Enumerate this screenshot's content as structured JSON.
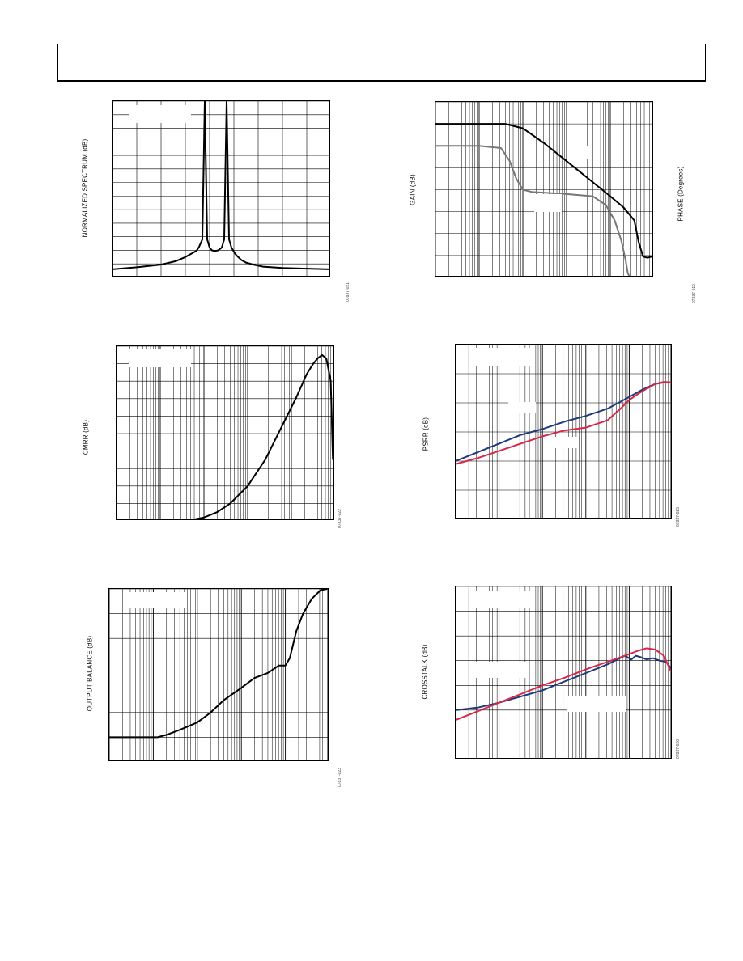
{
  "figures": [
    {
      "ylabel": "NORMALIZED SPECTRUM (dB)",
      "fig_id": "07837-021"
    },
    {
      "ylabel": "GAIN (dB)",
      "ylabel_right": "PHASE (Degrees)",
      "fig_id": "07837-010"
    },
    {
      "ylabel": "CMRR (dB)",
      "fig_id": "07837-022"
    },
    {
      "ylabel": "PSRR (dB)",
      "fig_id": "07837-025"
    },
    {
      "ylabel": "OUTPUT BALANCE (dB)",
      "fig_id": "07837-023"
    },
    {
      "ylabel": "CROSSTALK (dB)",
      "fig_id": "07837-026"
    }
  ],
  "colors": {
    "blue": "#1f3a7a",
    "red": "#d6284a",
    "black": "#000000",
    "gray": "#777777"
  },
  "chart_data": [
    {
      "type": "line",
      "xscale": "linear",
      "xlim": [
        0,
        9
      ],
      "ylim": [
        0,
        13
      ],
      "series": [
        {
          "values_x": [
            0,
            1,
            2,
            2.6,
            3,
            3.45,
            3.55,
            3.7,
            3.8,
            3.9,
            4.0,
            4.1,
            4.2,
            4.35,
            4.5,
            4.6,
            4.7,
            4.8,
            4.9,
            5.0,
            5.05,
            5.15,
            5.3,
            5.5,
            5.8,
            6.2,
            7,
            8,
            9
          ],
          "values_y": [
            0.6,
            0.75,
            0.95,
            1.2,
            1.5,
            1.95,
            2.2,
            2.8,
            13,
            2.8,
            2.2,
            2.0,
            1.95,
            2.0,
            2.2,
            2.8,
            13,
            2.8,
            2.2,
            1.9,
            1.75,
            1.55,
            1.3,
            1.1,
            0.95,
            0.8,
            0.7,
            0.65,
            0.6
          ]
        }
      ]
    },
    {
      "type": "line",
      "xscale": "log",
      "xlim": [
        0,
        5
      ],
      "ylim": [
        0,
        8
      ],
      "series": [
        {
          "name": "gain",
          "values_x": [
            0,
            1.6,
            2.0,
            2.5,
            3.0,
            3.5,
            4.0,
            4.3,
            4.55,
            4.65,
            4.75,
            4.85,
            4.95,
            5
          ],
          "values_y": [
            7.0,
            7.0,
            6.8,
            6.1,
            5.3,
            4.5,
            3.7,
            3.2,
            2.6,
            1.6,
            0.95,
            0.9,
            0.95,
            0.9
          ]
        },
        {
          "name": "phase",
          "values_x": [
            0,
            1.0,
            1.5,
            1.7,
            1.85,
            2.0,
            2.2,
            3.0,
            3.6,
            3.9,
            4.1,
            4.25,
            4.35,
            4.4,
            4.45
          ],
          "values_y": [
            6.0,
            6.0,
            5.9,
            5.3,
            4.5,
            4.0,
            3.9,
            3.8,
            3.7,
            3.3,
            2.6,
            1.7,
            0.8,
            0.2,
            0.0
          ]
        }
      ]
    },
    {
      "type": "line",
      "xscale": "log",
      "xlim": [
        0,
        5
      ],
      "ylim": [
        0,
        10
      ],
      "series": [
        {
          "values_x": [
            0,
            1.4,
            1.7,
            2.0,
            2.3,
            2.6,
            3.0,
            3.4,
            3.8,
            4.1,
            4.35,
            4.5,
            4.6,
            4.7,
            4.8,
            4.9,
            4.95
          ],
          "values_y": [
            0,
            0,
            0.05,
            0.2,
            0.5,
            1.0,
            2.0,
            3.5,
            5.5,
            7.0,
            8.4,
            9.0,
            9.3,
            9.5,
            9.3,
            8.0,
            3.5
          ]
        }
      ]
    },
    {
      "type": "line",
      "xscale": "log",
      "xlim": [
        0,
        5
      ],
      "ylim": [
        0,
        6
      ],
      "series": [
        {
          "name": "blue",
          "values_x": [
            0,
            0.5,
            1.0,
            1.5,
            2.0,
            2.5,
            3.0,
            3.5,
            4.0,
            4.3,
            4.6,
            4.8,
            5.0
          ],
          "values_y": [
            2.0,
            2.3,
            2.6,
            2.9,
            3.1,
            3.35,
            3.55,
            3.8,
            4.2,
            4.45,
            4.65,
            4.7,
            4.7
          ]
        },
        {
          "name": "red",
          "values_x": [
            0,
            0.5,
            1.0,
            1.5,
            2.0,
            2.5,
            3.0,
            3.5,
            3.8,
            4.0,
            4.3,
            4.6,
            4.8,
            5.0
          ],
          "values_y": [
            1.9,
            2.1,
            2.35,
            2.6,
            2.85,
            3.05,
            3.15,
            3.4,
            3.8,
            4.1,
            4.4,
            4.65,
            4.72,
            4.7
          ]
        }
      ]
    },
    {
      "type": "line",
      "xscale": "log",
      "xlim": [
        0,
        5
      ],
      "ylim": [
        0,
        7
      ],
      "series": [
        {
          "values_x": [
            0,
            1.0,
            1.1,
            1.3,
            1.6,
            2.0,
            2.3,
            2.6,
            3.0,
            3.3,
            3.6,
            3.85,
            4.0,
            4.1,
            4.25,
            4.4,
            4.6,
            4.8,
            4.95
          ],
          "values_y": [
            1.0,
            1.0,
            1.0,
            1.1,
            1.3,
            1.6,
            2.0,
            2.5,
            3.0,
            3.4,
            3.6,
            3.9,
            3.9,
            4.2,
            5.3,
            6.0,
            6.6,
            6.95,
            7.0
          ]
        }
      ]
    },
    {
      "type": "line",
      "xscale": "log",
      "xlim": [
        0,
        5
      ],
      "ylim": [
        0,
        7
      ],
      "series": [
        {
          "name": "blue",
          "values_x": [
            0,
            0.5,
            1.0,
            1.5,
            2.0,
            2.5,
            3.0,
            3.5,
            3.9,
            4.05,
            4.15,
            4.25,
            4.4,
            4.55,
            4.7,
            4.85,
            5.0
          ],
          "values_y": [
            2.0,
            2.1,
            2.3,
            2.55,
            2.8,
            3.15,
            3.5,
            3.85,
            4.2,
            4.05,
            4.2,
            4.15,
            4.05,
            4.1,
            4.0,
            3.95,
            3.6
          ]
        },
        {
          "name": "red",
          "values_x": [
            0,
            0.5,
            1.0,
            1.5,
            2.0,
            2.5,
            3.0,
            3.5,
            3.9,
            4.2,
            4.4,
            4.6,
            4.8,
            4.95
          ],
          "values_y": [
            1.6,
            1.95,
            2.3,
            2.65,
            3.0,
            3.3,
            3.65,
            3.95,
            4.2,
            4.4,
            4.5,
            4.45,
            4.2,
            3.6
          ]
        }
      ]
    }
  ]
}
